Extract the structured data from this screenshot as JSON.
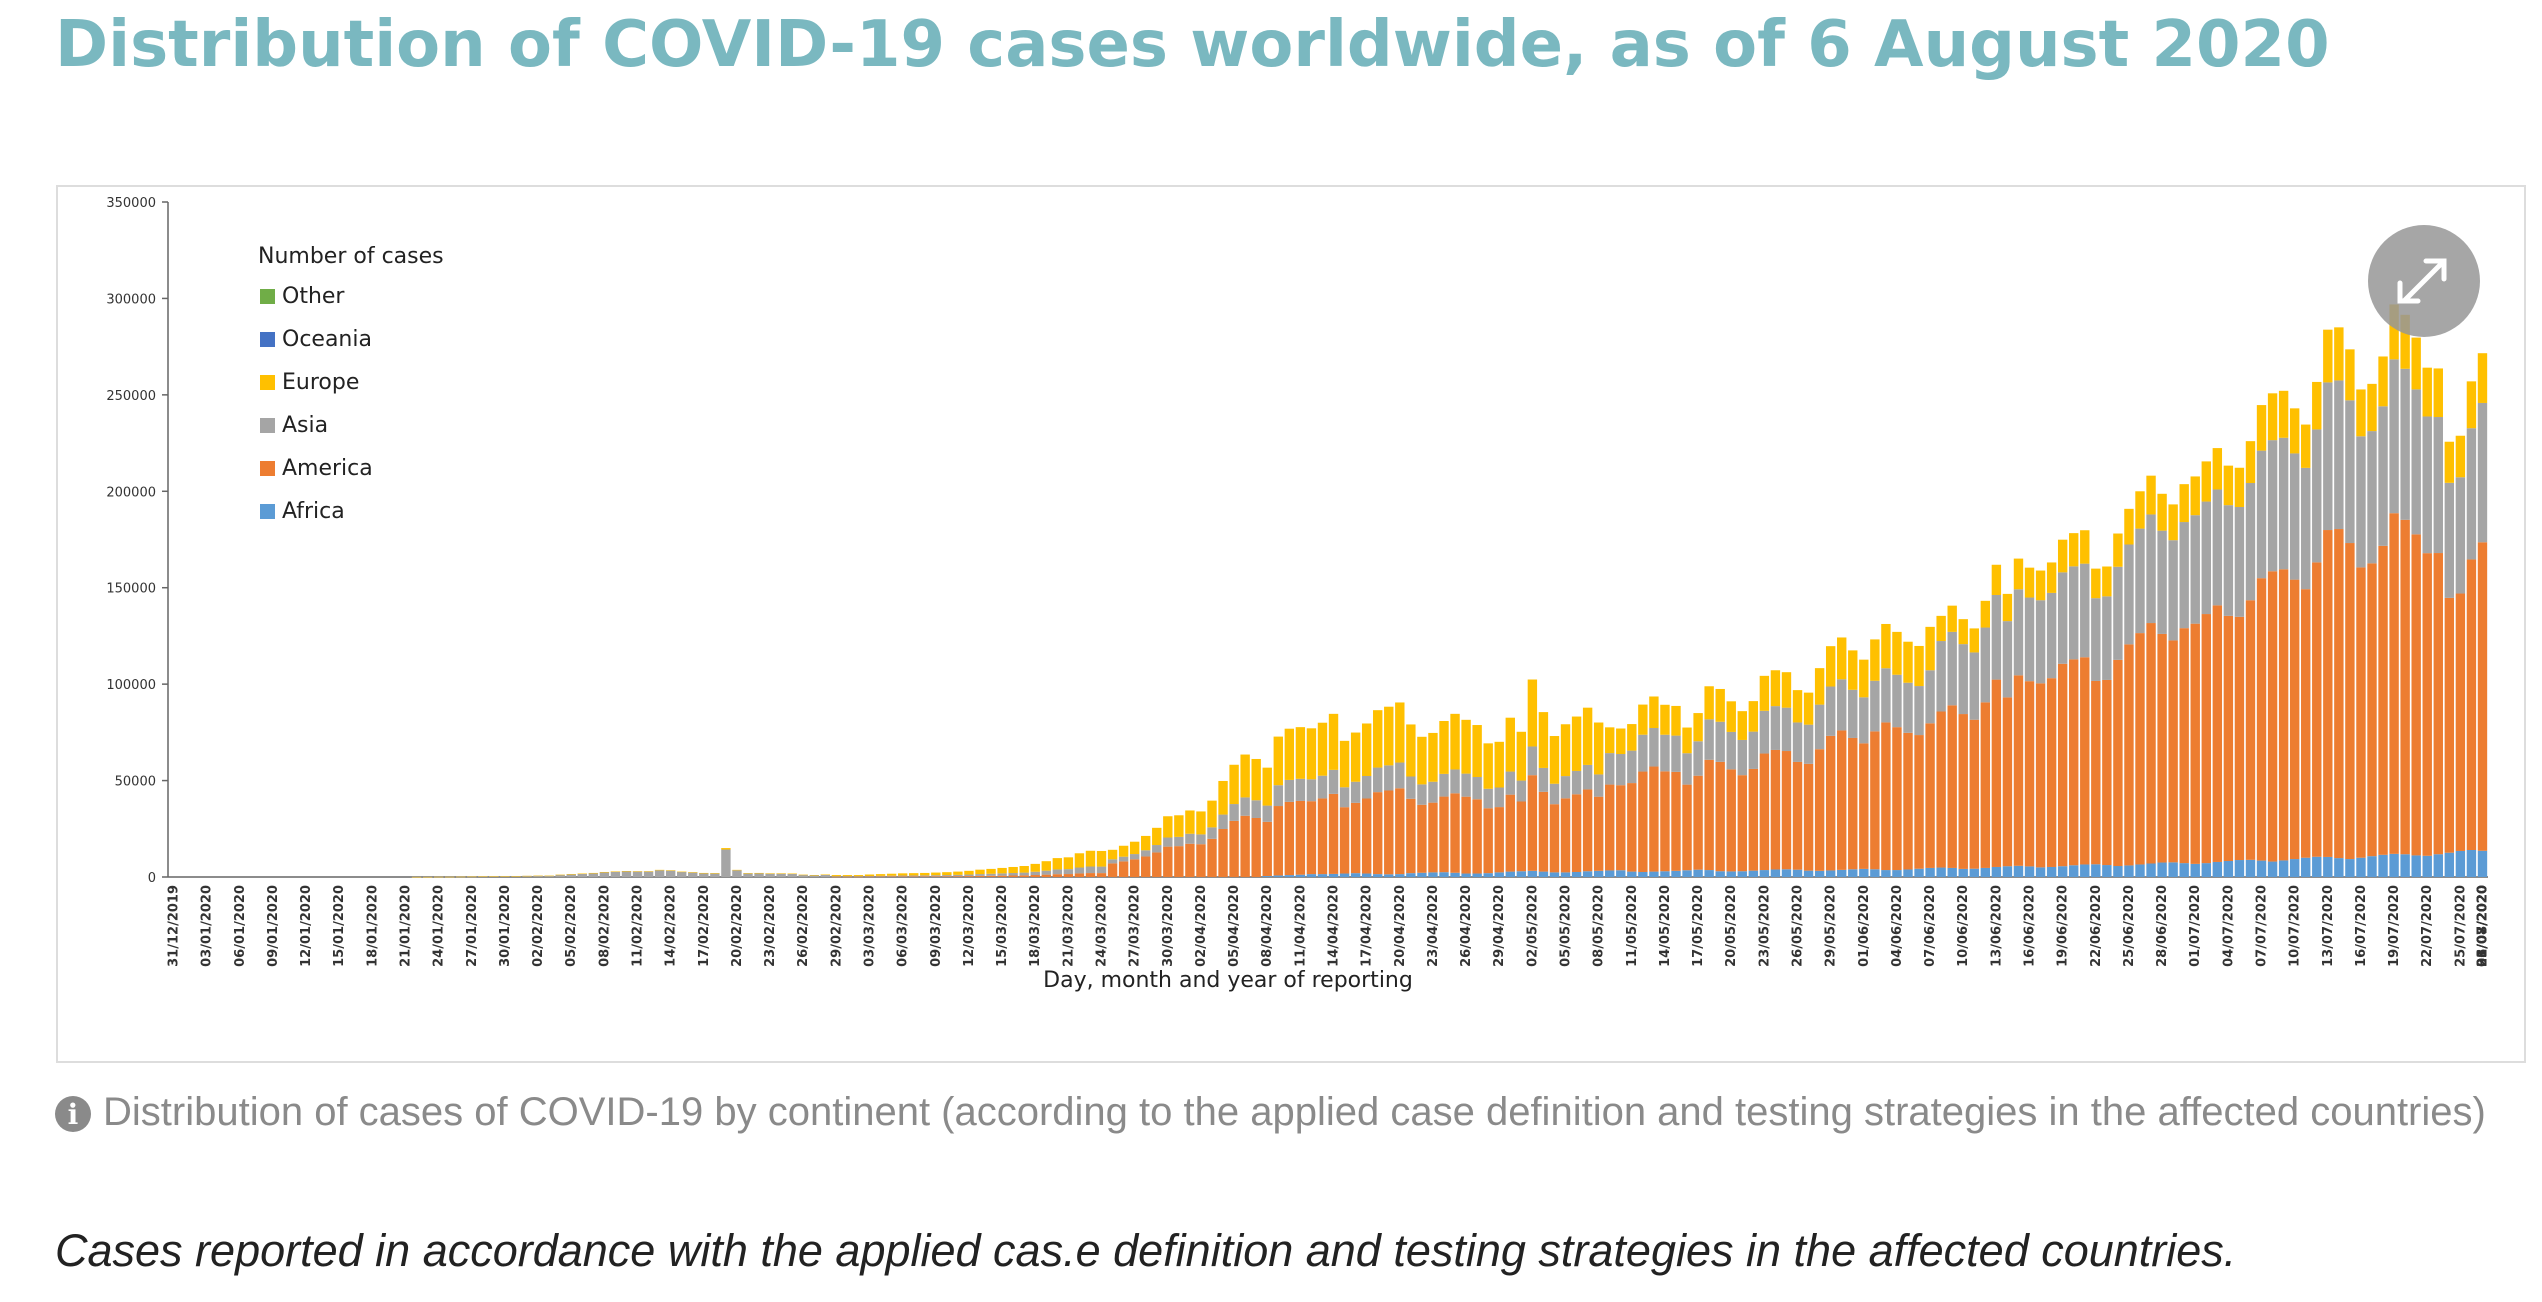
{
  "page": {
    "title": "Distribution of COVID-19 cases worldwide, as of 6 August 2020",
    "caption": "Distribution of cases of COVID-19 by continent (according to the applied case definition and testing strategies in the affected countries)",
    "note": "Cases reported in accordance with the applied cas.e definition and testing strategies in the affected countries.",
    "expand_icon": "expand-arrows-icon",
    "info_icon": "info-circle-icon"
  },
  "chart_data": {
    "type": "bar",
    "stacked": true,
    "xlabel": "Day, month and year of reporting",
    "ylabel": "",
    "ylim": [
      0,
      350000
    ],
    "yticks": [
      0,
      50000,
      100000,
      150000,
      200000,
      250000,
      300000,
      350000
    ],
    "legend_title": "Number of cases",
    "legend_position": "top-left",
    "grid": false,
    "tick_labels": [
      "31/12/2019",
      "03/01/2020",
      "06/01/2020",
      "09/01/2020",
      "12/01/2020",
      "15/01/2020",
      "18/01/2020",
      "21/01/2020",
      "24/01/2020",
      "27/01/2020",
      "30/01/2020",
      "02/02/2020",
      "05/02/2020",
      "08/02/2020",
      "11/02/2020",
      "14/02/2020",
      "17/02/2020",
      "20/02/2020",
      "23/02/2020",
      "26/02/2020",
      "29/02/2020",
      "03/03/2020",
      "06/03/2020",
      "09/03/2020",
      "12/03/2020",
      "15/03/2020",
      "18/03/2020",
      "21/03/2020",
      "24/03/2020",
      "27/03/2020",
      "30/03/2020",
      "02/04/2020",
      "05/04/2020",
      "08/04/2020",
      "11/04/2020",
      "14/04/2020",
      "17/04/2020",
      "20/04/2020",
      "23/04/2020",
      "26/04/2020",
      "29/04/2020",
      "02/05/2020",
      "05/05/2020",
      "08/05/2020",
      "11/05/2020",
      "14/05/2020",
      "17/05/2020",
      "20/05/2020",
      "23/05/2020",
      "26/05/2020",
      "29/05/2020",
      "01/06/2020",
      "04/06/2020",
      "07/06/2020",
      "10/06/2020",
      "13/06/2020",
      "16/06/2020",
      "19/06/2020",
      "22/06/2020",
      "25/06/2020",
      "28/06/2020",
      "01/07/2020",
      "04/07/2020",
      "07/07/2020",
      "10/07/2020",
      "13/07/2020",
      "16/07/2020",
      "19/07/2020",
      "22/07/2020",
      "25/07/2020",
      "28/07/2020",
      "31/07/2020",
      "03/08/2020",
      "06/08/2020"
    ],
    "series": [
      {
        "name": "Africa",
        "color": "#5b9bd5",
        "values": [
          0,
          0,
          0,
          0,
          0,
          0,
          0,
          0,
          0,
          0,
          0,
          0,
          0,
          0,
          0,
          0,
          0,
          0,
          0,
          0,
          0,
          0,
          0,
          0,
          0,
          0,
          0,
          0,
          0,
          0,
          0,
          0,
          0,
          0,
          0,
          0,
          0,
          0,
          0,
          0,
          0,
          0,
          0,
          0,
          0,
          0,
          0,
          0,
          0,
          0,
          0,
          0,
          0,
          0,
          0,
          0,
          0,
          0,
          0,
          0,
          0,
          0,
          0,
          0,
          0,
          0,
          0,
          0,
          0,
          0,
          0,
          0,
          0,
          0,
          0,
          0,
          0,
          0,
          0,
          0,
          0,
          0,
          0,
          0,
          0,
          0,
          0,
          0,
          0,
          0,
          0,
          0,
          0,
          0,
          0,
          0,
          0,
          0,
          0,
          500,
          800,
          1000,
          1200,
          1500,
          1500,
          1600,
          1800,
          2000,
          1800,
          1500,
          1400,
          1500,
          2000,
          2200,
          2400,
          2500,
          2200,
          1800,
          1800,
          2000,
          2400,
          2800,
          3000,
          3200,
          2800,
          2400,
          2400,
          2600,
          3000,
          3200,
          3400,
          3500,
          2800,
          2600,
          2800,
          3000,
          3200,
          3500,
          3800,
          3600,
          3000,
          2900,
          3000,
          3300,
          3600,
          3900,
          4000,
          3800,
          3300,
          3200,
          3400,
          3700,
          4000,
          4200,
          4000,
          3600,
          3600,
          3900,
          4300,
          4700,
          4900,
          4700,
          4200,
          4300,
          4700,
          5200,
          5600,
          5800,
          5500,
          5000,
          5200,
          5600,
          6100,
          6500,
          6600,
          6200,
          5700,
          6000,
          6500,
          7000,
          7500,
          7600,
          7200,
          6800,
          7200,
          7800,
          8300,
          8800,
          8900,
          8500,
          8000,
          8600,
          9300,
          10000,
          10500,
          10400,
          9800,
          9300,
          10000,
          10800,
          11500,
          12000,
          11800,
          11200,
          11000,
          11800,
          12600,
          13500,
          14000,
          13600,
          13000,
          13000,
          14000,
          15000,
          15800,
          16300,
          15800,
          15200,
          15200,
          16200,
          17200,
          18000,
          18500,
          18000,
          17300,
          17500,
          18500,
          19500,
          20000,
          20200,
          19500,
          18500,
          18500,
          19300,
          20000,
          20200,
          19600,
          18700,
          14000,
          17000,
          18000,
          18500,
          18000,
          17500,
          12000,
          10000,
          9000,
          16000
        ]
      },
      {
        "name": "America",
        "color": "#ed7d31",
        "values": []
      },
      {
        "name": "Asia",
        "color": "#a5a5a5",
        "values": []
      },
      {
        "name": "Europe",
        "color": "#ffc000",
        "values": []
      },
      {
        "name": "Oceania",
        "color": "#4472c4",
        "values": []
      },
      {
        "name": "Other",
        "color": "#70ad47",
        "values": []
      }
    ],
    "totals_note": "",
    "totals": [
      0,
      0,
      0,
      0,
      0,
      0,
      0,
      0,
      0,
      0,
      0,
      0,
      0,
      0,
      0,
      0,
      0,
      0,
      0,
      0,
      0,
      0,
      50,
      50,
      100,
      100,
      150,
      200,
      250,
      300,
      400,
      500,
      600,
      700,
      700,
      1200,
      1500,
      1800,
      2100,
      2600,
      2900,
      3100,
      3000,
      3000,
      3700,
      3500,
      2800,
      2500,
      2100,
      2000,
      15000,
      3700,
      2000,
      2100,
      1900,
      1900,
      1800,
      1200,
      1000,
      1300,
      1000,
      1000,
      1000,
      1300,
      1500,
      1700,
      1900,
      2000,
      2100,
      2300,
      2500,
      2800,
      3200,
      3800,
      4200,
      4700,
      5200,
      5700,
      6800,
      8200,
      9800,
      10200,
      12300,
      13600,
      13500,
      14100,
      16200,
      18300,
      21300,
      25500,
      31500,
      32000,
      34500,
      34000,
      39600,
      49800,
      58200,
      63500,
      61200,
      56700,
      72800,
      76900,
      77700,
      77100,
      80000,
      84600,
      70600,
      74900,
      79600,
      86500,
      88300,
      90500,
      79100,
      72700,
      74700,
      80900,
      84600,
      81500,
      78800,
      69300,
      70100,
      82600,
      75300,
      102400,
      85500,
      73100,
      79200,
      83200,
      87800,
      80100,
      77600,
      77000,
      79300,
      89400,
      93600,
      89300,
      88700,
      77500,
      85000,
      98900,
      97500,
      91100,
      86000,
      91200,
      104300,
      107200,
      106200,
      96900,
      95600,
      108300,
      119700,
      124200,
      117500,
      112700,
      123200,
      131200,
      127100,
      122000,
      119800,
      129700,
      135400,
      140700,
      133700,
      128900,
      143200,
      161900,
      146800,
      165100,
      160400,
      158900,
      163100,
      174900,
      178300,
      179800,
      159900,
      161000,
      178100,
      190900,
      200000,
      208100,
      198700,
      193200,
      203700,
      207700,
      215500,
      222400,
      213300,
      212200,
      226000,
      244700,
      250800,
      252100,
      243000,
      234600,
      256700,
      283800,
      285000,
      273600,
      252800,
      255700,
      269900,
      296900,
      291500,
      279700,
      264100,
      263700,
      225700,
      228800,
      257000,
      271600
    ]
  }
}
